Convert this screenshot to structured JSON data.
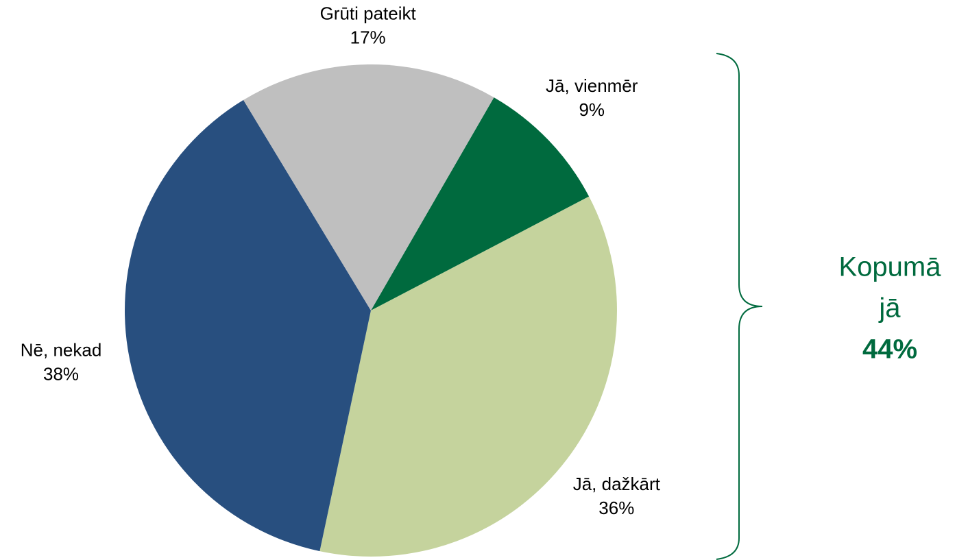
{
  "chart_data": {
    "type": "pie",
    "categories": [
      "Jā, vienmēr",
      "Jā, dažkārt",
      "Nē, nekad",
      "Grūti pateikt"
    ],
    "values": [
      9,
      36,
      38,
      17
    ],
    "value_labels": [
      "9%",
      "36%",
      "38%",
      "17%"
    ],
    "colors": [
      "#006a3e",
      "#c5d39d",
      "#284f7f",
      "#bfbfbf"
    ],
    "annotation": {
      "lines": [
        "Kopumā",
        "jā"
      ],
      "value": 44,
      "value_label": "44%",
      "color": "#006a3e"
    }
  }
}
